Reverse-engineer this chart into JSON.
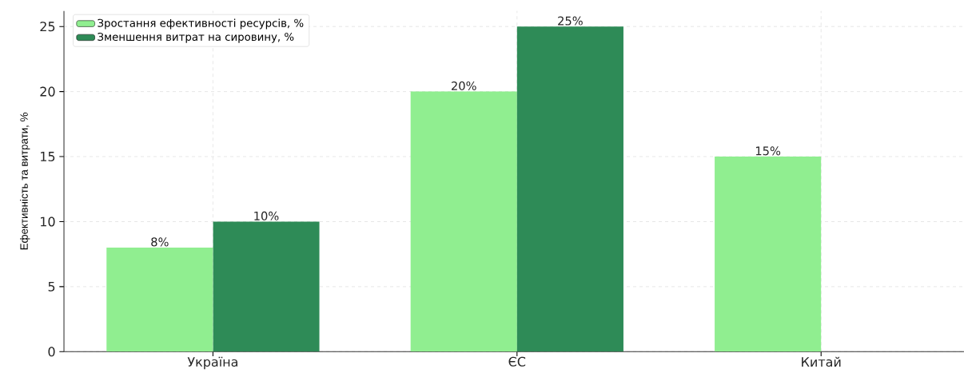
{
  "chart_data": {
    "type": "bar",
    "ylabel": "Ефективність та витрати, %",
    "categories": [
      "Україна",
      "ЄС",
      "Китай"
    ],
    "series": [
      {
        "name": "Зростання ефективності ресурсів, %",
        "color": "#90ee90",
        "values": [
          8,
          20,
          15
        ],
        "value_labels": [
          "8%",
          "20%",
          "15%"
        ]
      },
      {
        "name": "Зменшення витрат на сировину, %",
        "color": "#2e8b57",
        "values": [
          10,
          25,
          null
        ],
        "value_labels": [
          "10%",
          "25%",
          null
        ]
      }
    ],
    "ylim": [
      0,
      26.2
    ],
    "yticks": [
      0,
      5,
      10,
      15,
      20,
      25
    ],
    "grid": true,
    "legend": "top left"
  }
}
